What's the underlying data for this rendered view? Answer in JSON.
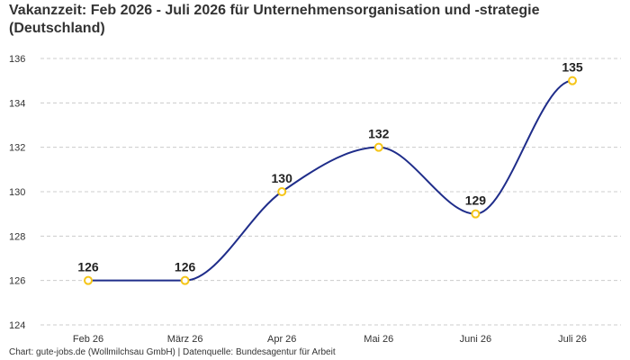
{
  "header": {
    "title": "Vakanzzeit: Feb 2026 - Juli 2026 für Unternehmensorganisation und -strategie (Deutschland)"
  },
  "footer": {
    "source": "Chart: gute-jobs.de (Wollmilchsau GmbH) | Datenquelle: Bundesagentur für Arbeit"
  },
  "colors": {
    "line": "#1f2d8a",
    "marker_stroke": "#f5c518",
    "marker_fill": "#ffffff",
    "grid": "#cccccc"
  },
  "chart_data": {
    "type": "line",
    "title": "Vakanzzeit: Feb 2026 - Juli 2026 für Unternehmensorganisation und -strategie (Deutschland)",
    "xlabel": "",
    "ylabel": "",
    "categories": [
      "Feb 26",
      "März 26",
      "Apr 26",
      "Mai 26",
      "Juni 26",
      "Juli 26"
    ],
    "series": [
      {
        "values": [
          126,
          126,
          130,
          132,
          129,
          135
        ]
      }
    ],
    "ylim": [
      124,
      136
    ],
    "yticks": [
      124,
      126,
      128,
      130,
      132,
      134,
      136
    ],
    "grid": true,
    "grid_style": "dashed",
    "curve": "smooth",
    "data_labels": true,
    "legend": "none"
  }
}
